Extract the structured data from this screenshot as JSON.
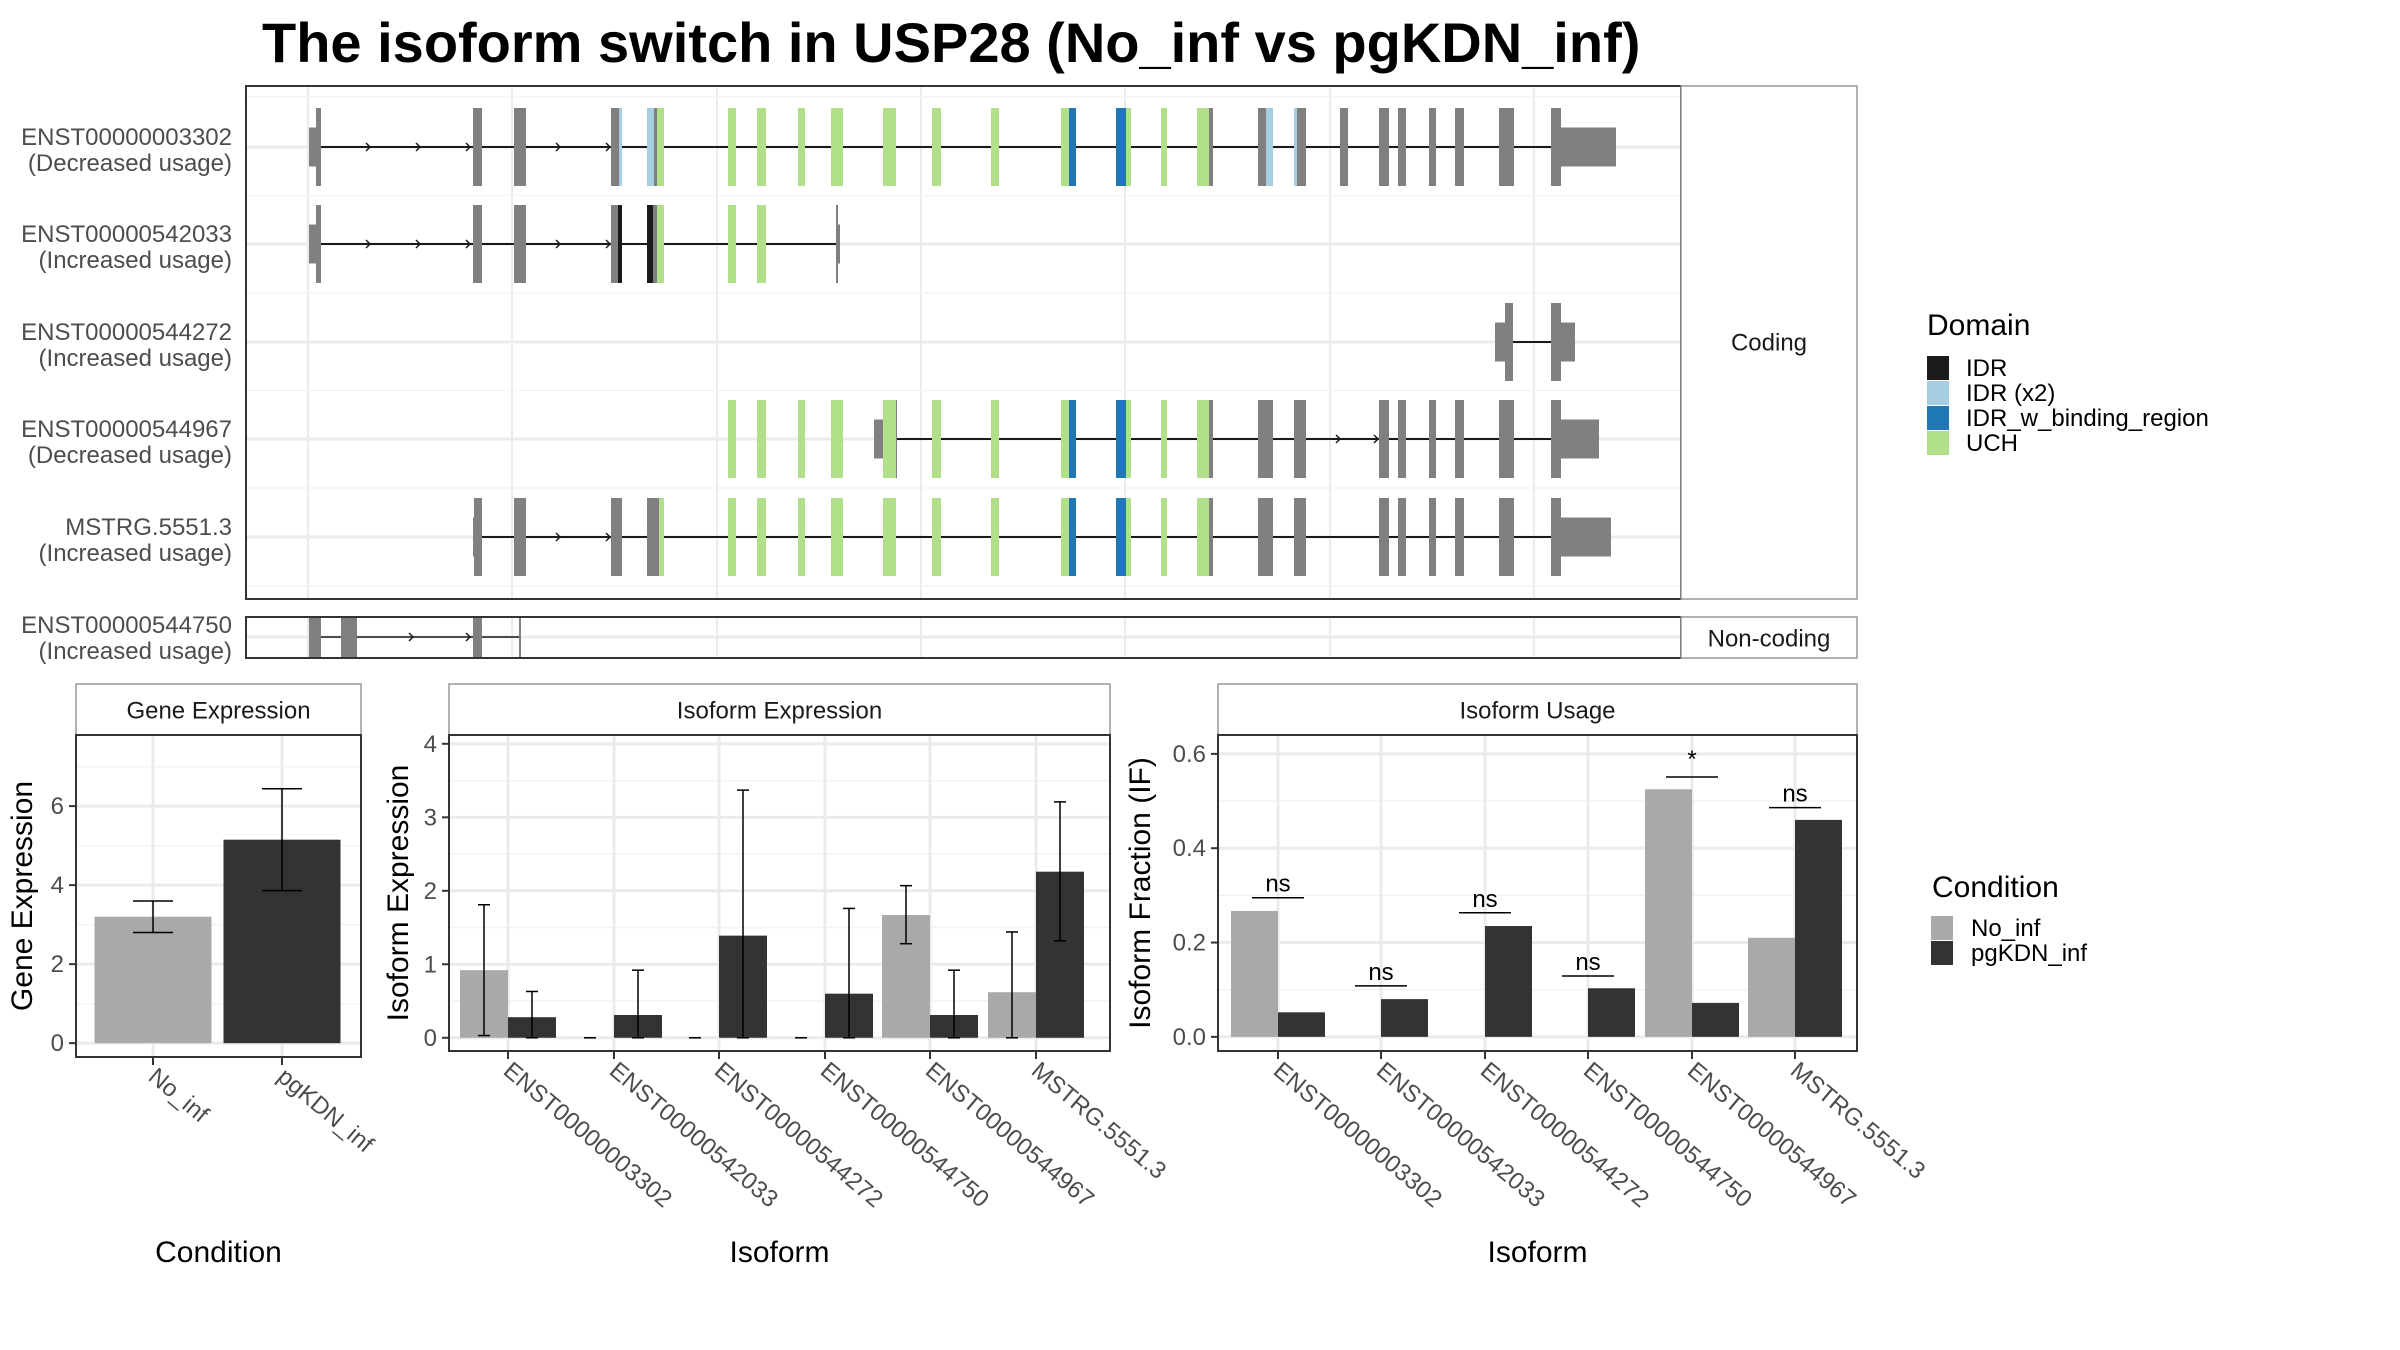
{
  "title": "The isoform switch in USP28 (No_inf vs pgKDN_inf)",
  "colors": {
    "No_inf": "#a9a9a9",
    "pgKDN_inf": "#333333",
    "IDR": "#1a1a1a",
    "IDR (x2)": "#a6cee3",
    "IDR_w_binding_region": "#1f78b4",
    "UCH": "#b2df8a",
    "exon_default": "#808080"
  },
  "structure": {
    "strips": {
      "coding": "Coding",
      "noncoding": "Non-coding"
    },
    "coding_transcripts": [
      {
        "id": "ENST00000003302",
        "status": "(Decreased usage)"
      },
      {
        "id": "ENST00000542033",
        "status": "(Increased usage)"
      },
      {
        "id": "ENST00000544272",
        "status": "(Increased usage)"
      },
      {
        "id": "ENST00000544967",
        "status": "(Decreased usage)"
      },
      {
        "id": "MSTRG.5551.3",
        "status": "(Increased usage)"
      }
    ],
    "noncoding_transcripts": [
      {
        "id": "ENST00000544750",
        "status": "(Increased usage)"
      }
    ]
  },
  "legends": {
    "domain": {
      "title": "Domain",
      "items": [
        "IDR",
        "IDR (x2)",
        "IDR_w_binding_region",
        "UCH"
      ]
    },
    "condition": {
      "title": "Condition",
      "items": [
        "No_inf",
        "pgKDN_inf"
      ]
    }
  },
  "chart_data": [
    {
      "type": "bar",
      "title": "Gene Expression",
      "xlabel": "Condition",
      "ylabel": "Gene Expression",
      "categories": [
        "No_inf",
        "pgKDN_inf"
      ],
      "values": [
        3.2,
        5.15
      ],
      "error_low": [
        2.8,
        3.86
      ],
      "error_high": [
        3.6,
        6.44
      ],
      "yticks": [
        0,
        2,
        4,
        6
      ],
      "ylim": [
        -0.35,
        7.8
      ],
      "grid": true
    },
    {
      "type": "bar",
      "title": "Isoform Expression",
      "xlabel": "Isoform",
      "ylabel": "Isoform Expression",
      "categories": [
        "ENST00000003302",
        "ENST00000542033",
        "ENST00000544272",
        "ENST00000544750",
        "ENST00000544967",
        "MSTRG.5551.3"
      ],
      "series": [
        {
          "name": "No_inf",
          "values": [
            0.92,
            0,
            0,
            0,
            1.67,
            0.62
          ],
          "error_low": [
            0.03,
            0,
            0,
            0,
            1.28,
            0
          ],
          "error_high": [
            1.81,
            0,
            0,
            0,
            2.07,
            1.44
          ]
        },
        {
          "name": "pgKDN_inf",
          "values": [
            0.28,
            0.31,
            1.39,
            0.6,
            0.31,
            2.26
          ],
          "error_low": [
            0,
            0,
            0,
            0,
            0,
            1.32
          ],
          "error_high": [
            0.63,
            0.92,
            3.37,
            1.76,
            0.92,
            3.21
          ]
        }
      ],
      "yticks": [
        0,
        1,
        2,
        3,
        4
      ],
      "ylim": [
        -0.18,
        4.12
      ],
      "grid": true
    },
    {
      "type": "bar",
      "title": "Isoform Usage",
      "xlabel": "Isoform",
      "ylabel": "Isoform Fraction (IF)",
      "categories": [
        "ENST00000003302",
        "ENST00000542033",
        "ENST00000544272",
        "ENST00000544750",
        "ENST00000544967",
        "MSTRG.5551.3"
      ],
      "series": [
        {
          "name": "No_inf",
          "values": [
            0.267,
            0,
            0,
            0,
            0.525,
            0.21
          ]
        },
        {
          "name": "pgKDN_inf",
          "values": [
            0.052,
            0.08,
            0.235,
            0.103,
            0.072,
            0.46
          ]
        }
      ],
      "significance": [
        {
          "label": "ns",
          "y": 0.295
        },
        {
          "label": "ns",
          "y": 0.108
        },
        {
          "label": "ns",
          "y": 0.263
        },
        {
          "label": "ns",
          "y": 0.129
        },
        {
          "label": "*",
          "y": 0.551
        },
        {
          "label": "ns",
          "y": 0.486
        }
      ],
      "yticks": [
        0.0,
        0.2,
        0.4,
        0.6
      ],
      "ytick_labels": [
        "0.0",
        "0.2",
        "0.4",
        "0.6"
      ],
      "ylim": [
        -0.03,
        0.64
      ],
      "grid": true
    }
  ]
}
